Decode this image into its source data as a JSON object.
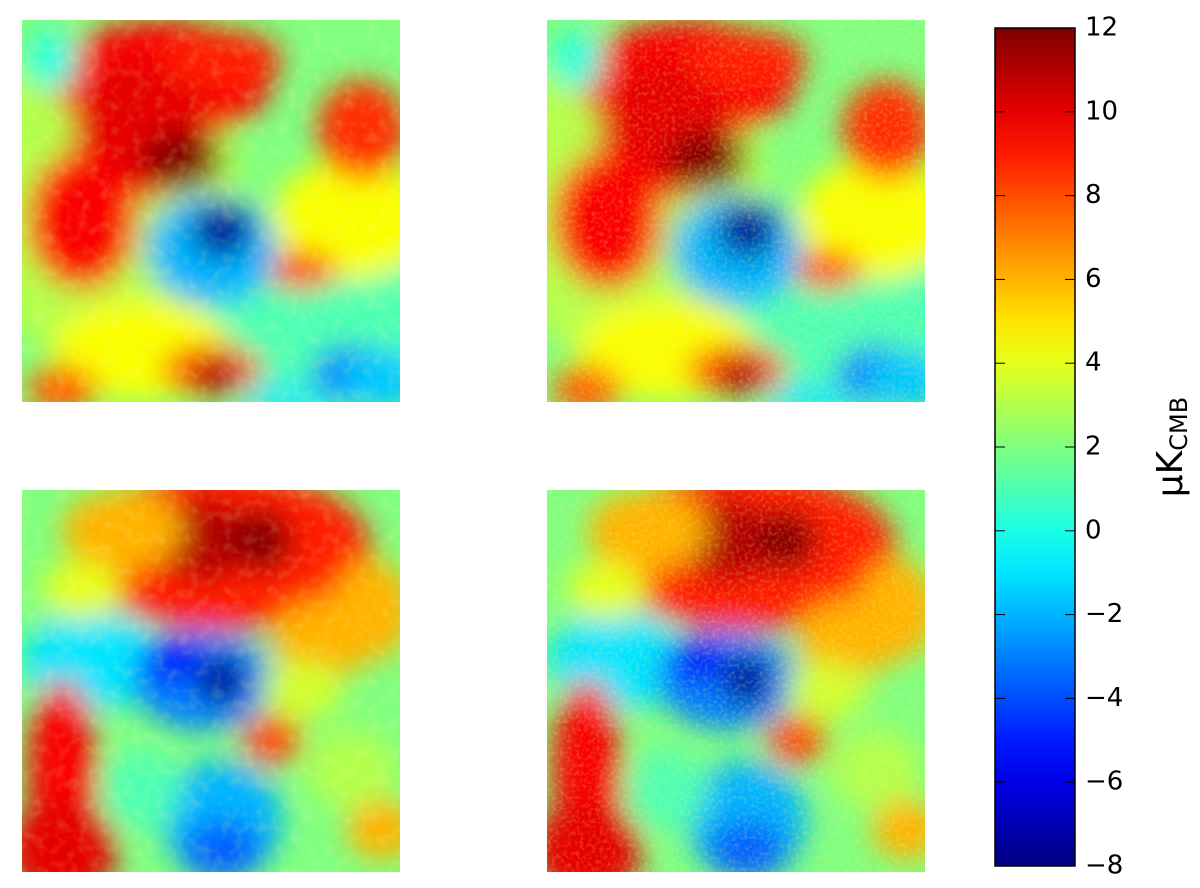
{
  "chart_data": {
    "type": "heatmap",
    "colormap": "jet",
    "colorbar_label": {
      "text": "μK",
      "subscript": "CMB"
    },
    "ylim": [
      -8,
      12
    ],
    "yticks": [
      {
        "value": -8,
        "label": "−8"
      },
      {
        "value": -6,
        "label": "−6"
      },
      {
        "value": -4,
        "label": "−4"
      },
      {
        "value": -2,
        "label": "−2"
      },
      0,
      2,
      4,
      6,
      8,
      10,
      12
    ]
  }
}
